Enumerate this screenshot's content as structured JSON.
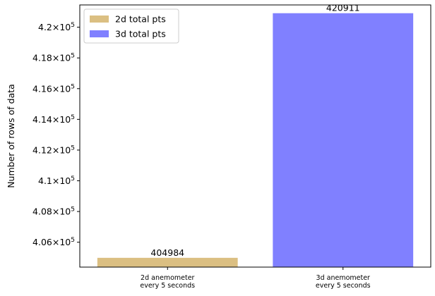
{
  "chart_data": {
    "type": "bar",
    "categories": [
      [
        "2d anemometer",
        "every 5 seconds"
      ],
      [
        "3d anemometer",
        "every 5 seconds"
      ]
    ],
    "series": [
      {
        "name": "2d total pts",
        "values": [
          404984,
          null
        ],
        "color": "#DBBF82"
      },
      {
        "name": "3d total pts",
        "values": [
          null,
          420911
        ],
        "color": "#8080FF"
      }
    ],
    "data_labels": [
      "404984",
      "420911"
    ],
    "ylabel": "Number of rows of data",
    "ylim": [
      404380,
      421450
    ],
    "yticks": [
      {
        "value": 406000,
        "mantissa": "4.06"
      },
      {
        "value": 408000,
        "mantissa": "4.08"
      },
      {
        "value": 410000,
        "mantissa": "4.1"
      },
      {
        "value": 412000,
        "mantissa": "4.12"
      },
      {
        "value": 414000,
        "mantissa": "4.14"
      },
      {
        "value": 416000,
        "mantissa": "4.16"
      },
      {
        "value": 418000,
        "mantissa": "4.18"
      },
      {
        "value": 420000,
        "mantissa": "4.2"
      }
    ],
    "ytick_base": "10",
    "ytick_exponent": "5",
    "ytick_times": "×",
    "legend_position": "top-left",
    "grid": false
  }
}
